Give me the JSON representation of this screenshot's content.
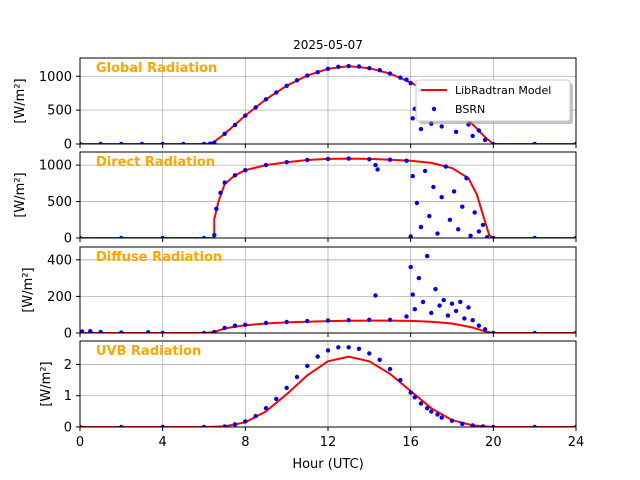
{
  "chart_data": {
    "type": "scatter",
    "title": "2025-05-07",
    "xlabel": "Hour (UTC)",
    "xlim": [
      0,
      24
    ],
    "xticks": [
      0,
      4,
      8,
      12,
      16,
      20,
      24
    ],
    "grid": true,
    "legend": {
      "placement": "upper-right of first panel",
      "entries": [
        {
          "name": "LibRadtran Model",
          "type": "line",
          "color": "#ff0000"
        },
        {
          "name": "BSRN",
          "type": "marker",
          "color": "#0000ff"
        }
      ]
    },
    "title_color": "#ffa500",
    "panels": [
      {
        "title": "Global Radiation",
        "ylabel": "[W/m²]",
        "ylim": [
          0,
          1270
        ],
        "yticks": [
          0,
          500,
          1000
        ],
        "model": {
          "x": [
            0,
            6,
            6.4,
            7,
            8,
            9,
            10,
            11,
            12,
            13,
            14,
            15,
            16,
            17,
            18,
            19,
            19.6,
            20,
            24
          ],
          "y": [
            0,
            0,
            10,
            150,
            420,
            660,
            860,
            1010,
            1110,
            1150,
            1120,
            1040,
            910,
            740,
            530,
            290,
            100,
            0,
            0
          ]
        },
        "obs": {
          "x": [
            0,
            1,
            2,
            3,
            4,
            5,
            6,
            6.3,
            6.5,
            7,
            7.5,
            8,
            8.5,
            9,
            9.5,
            10,
            10.5,
            11,
            11.5,
            12,
            12.5,
            13,
            13.5,
            14,
            14.5,
            15,
            15.5,
            15.8,
            16.0,
            16.1,
            16.2,
            16.4,
            16.5,
            16.7,
            17.0,
            17.2,
            17.5,
            17.8,
            18.0,
            18.2,
            18.5,
            18.8,
            19.0,
            19.3,
            19.6,
            20,
            22,
            24
          ],
          "y": [
            0,
            0,
            0,
            0,
            0,
            0,
            0,
            5,
            20,
            150,
            280,
            420,
            540,
            660,
            760,
            860,
            940,
            1010,
            1060,
            1110,
            1140,
            1150,
            1145,
            1120,
            1090,
            1040,
            980,
            950,
            900,
            380,
            520,
            650,
            220,
            880,
            300,
            690,
            260,
            540,
            410,
            180,
            360,
            290,
            120,
            200,
            60,
            0,
            0,
            0
          ]
        }
      },
      {
        "title": "Direct Radiation",
        "ylabel": "[W/m²]",
        "ylim": [
          0,
          1180
        ],
        "yticks": [
          0,
          500,
          1000
        ],
        "model": {
          "x": [
            0,
            6.5,
            6.5,
            6.7,
            7,
            7.5,
            8,
            9,
            10,
            11,
            12,
            13,
            14,
            15,
            16,
            17,
            18,
            18.8,
            19.2,
            19.5,
            19.8,
            20,
            24
          ],
          "y": [
            0,
            0,
            260,
            500,
            740,
            860,
            930,
            1000,
            1040,
            1070,
            1085,
            1090,
            1085,
            1075,
            1060,
            1030,
            960,
            820,
            600,
            320,
            40,
            0,
            0
          ]
        },
        "obs": {
          "x": [
            0,
            2,
            4,
            6,
            6.5,
            6.6,
            6.8,
            7,
            7.5,
            8,
            9,
            10,
            11,
            12,
            13,
            14,
            14.3,
            14.4,
            15,
            15.8,
            16.0,
            16.1,
            16.3,
            16.5,
            16.7,
            16.9,
            17.1,
            17.3,
            17.5,
            17.7,
            17.9,
            18.1,
            18.3,
            18.5,
            18.7,
            18.9,
            19.1,
            19.3,
            19.5,
            19.7,
            20,
            22,
            24
          ],
          "y": [
            0,
            0,
            0,
            0,
            40,
            400,
            620,
            760,
            860,
            930,
            1000,
            1040,
            1070,
            1085,
            1090,
            1080,
            1000,
            940,
            1075,
            1060,
            20,
            850,
            480,
            150,
            920,
            300,
            700,
            60,
            560,
            980,
            250,
            640,
            120,
            430,
            820,
            30,
            350,
            90,
            180,
            10,
            0,
            0,
            0
          ]
        }
      },
      {
        "title": "Diffuse Radiation",
        "ylabel": "[W/m²]",
        "ylim": [
          0,
          470
        ],
        "yticks": [
          0,
          200,
          400
        ],
        "model": {
          "x": [
            0,
            6,
            6.5,
            7,
            8,
            9,
            10,
            11,
            12,
            13,
            14,
            15,
            16,
            17,
            18,
            19,
            19.5,
            20,
            24
          ],
          "y": [
            0,
            0,
            5,
            25,
            42,
            52,
            58,
            62,
            65,
            67,
            68,
            68,
            66,
            62,
            52,
            30,
            12,
            0,
            0
          ]
        },
        "obs": {
          "x": [
            0.1,
            0.5,
            1,
            2,
            3.3,
            4,
            6,
            6.5,
            7,
            7.5,
            8,
            9,
            10,
            11,
            12,
            13,
            14,
            14.3,
            15,
            15.8,
            16.0,
            16.1,
            16.2,
            16.4,
            16.6,
            16.8,
            17.0,
            17.2,
            17.4,
            17.6,
            17.8,
            18.0,
            18.2,
            18.4,
            18.6,
            18.8,
            19.0,
            19.3,
            19.6,
            20,
            22,
            24
          ],
          "y": [
            8,
            10,
            5,
            2,
            4,
            0,
            0,
            5,
            28,
            40,
            45,
            55,
            60,
            65,
            68,
            70,
            72,
            205,
            72,
            90,
            360,
            210,
            130,
            300,
            170,
            420,
            110,
            240,
            150,
            180,
            95,
            160,
            120,
            170,
            80,
            140,
            70,
            40,
            20,
            0,
            0,
            0
          ]
        }
      },
      {
        "title": "UVB Radiation",
        "ylabel": "[W/m²]",
        "ylim": [
          0,
          2.75
        ],
        "yticks": [
          0,
          1,
          2
        ],
        "model": {
          "x": [
            0,
            6,
            7,
            8,
            9,
            10,
            11,
            12,
            13,
            14,
            15,
            16,
            17,
            18,
            19,
            20,
            24
          ],
          "y": [
            0,
            0,
            0.02,
            0.15,
            0.5,
            1.05,
            1.65,
            2.1,
            2.25,
            2.1,
            1.7,
            1.15,
            0.6,
            0.22,
            0.05,
            0,
            0
          ]
        },
        "obs": {
          "x": [
            0,
            2,
            4,
            6,
            7,
            7.5,
            8,
            8.5,
            9,
            9.5,
            10,
            10.5,
            11,
            11.5,
            12,
            12.5,
            13,
            13.5,
            14,
            14.5,
            15,
            15.5,
            16,
            16.2,
            16.5,
            16.8,
            17,
            17.3,
            17.5,
            18,
            18.5,
            19,
            19.5,
            20,
            22,
            24
          ],
          "y": [
            0,
            0,
            0,
            0,
            0.02,
            0.08,
            0.18,
            0.35,
            0.6,
            0.9,
            1.25,
            1.6,
            1.95,
            2.25,
            2.45,
            2.55,
            2.55,
            2.5,
            2.35,
            2.15,
            1.85,
            1.5,
            1.1,
            0.95,
            0.75,
            0.6,
            0.5,
            0.4,
            0.3,
            0.2,
            0.1,
            0.05,
            0.02,
            0,
            0,
            0
          ]
        }
      }
    ]
  }
}
